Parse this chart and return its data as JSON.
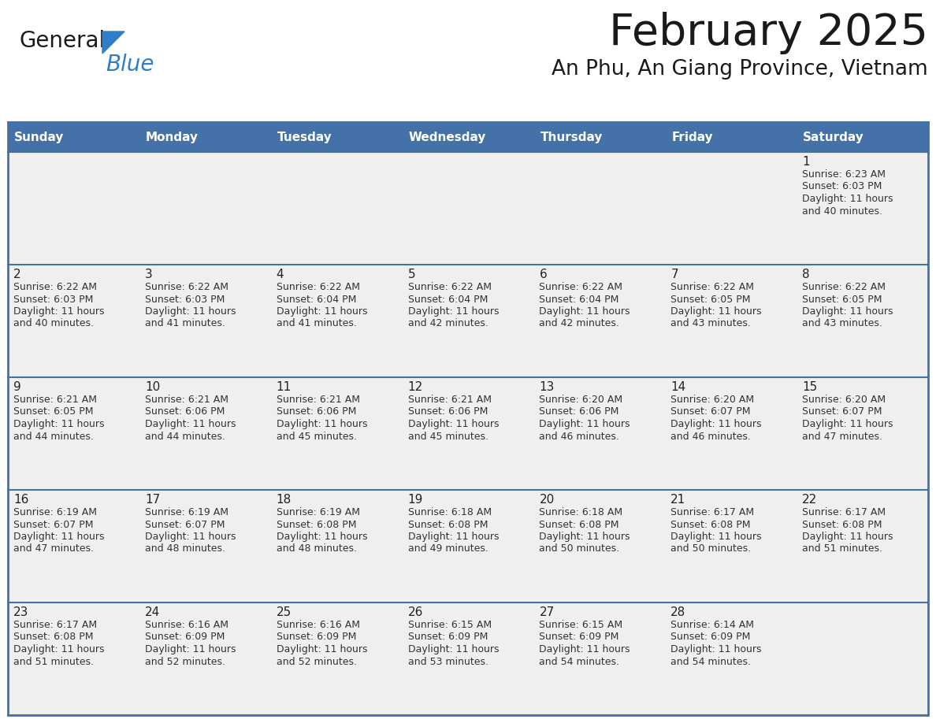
{
  "title": "February 2025",
  "subtitle": "An Phu, An Giang Province, Vietnam",
  "days_of_week": [
    "Sunday",
    "Monday",
    "Tuesday",
    "Wednesday",
    "Thursday",
    "Friday",
    "Saturday"
  ],
  "header_bg": "#4472A8",
  "header_text_color": "#FFFFFF",
  "cell_bg": "#EFEFEF",
  "border_color": "#4472A8",
  "day_num_color": "#222222",
  "info_text_color": "#333333",
  "title_color": "#1a1a1a",
  "subtitle_color": "#1a1a1a",
  "logo_general_color": "#1a1a1a",
  "logo_blue_color": "#2F7EC7",
  "calendar_data": [
    [
      {
        "day": null,
        "sunrise": null,
        "sunset": null,
        "daylight": null
      },
      {
        "day": null,
        "sunrise": null,
        "sunset": null,
        "daylight": null
      },
      {
        "day": null,
        "sunrise": null,
        "sunset": null,
        "daylight": null
      },
      {
        "day": null,
        "sunrise": null,
        "sunset": null,
        "daylight": null
      },
      {
        "day": null,
        "sunrise": null,
        "sunset": null,
        "daylight": null
      },
      {
        "day": null,
        "sunrise": null,
        "sunset": null,
        "daylight": null
      },
      {
        "day": 1,
        "sunrise": "6:23 AM",
        "sunset": "6:03 PM",
        "daylight": "11 hours\nand 40 minutes."
      }
    ],
    [
      {
        "day": 2,
        "sunrise": "6:22 AM",
        "sunset": "6:03 PM",
        "daylight": "11 hours\nand 40 minutes."
      },
      {
        "day": 3,
        "sunrise": "6:22 AM",
        "sunset": "6:03 PM",
        "daylight": "11 hours\nand 41 minutes."
      },
      {
        "day": 4,
        "sunrise": "6:22 AM",
        "sunset": "6:04 PM",
        "daylight": "11 hours\nand 41 minutes."
      },
      {
        "day": 5,
        "sunrise": "6:22 AM",
        "sunset": "6:04 PM",
        "daylight": "11 hours\nand 42 minutes."
      },
      {
        "day": 6,
        "sunrise": "6:22 AM",
        "sunset": "6:04 PM",
        "daylight": "11 hours\nand 42 minutes."
      },
      {
        "day": 7,
        "sunrise": "6:22 AM",
        "sunset": "6:05 PM",
        "daylight": "11 hours\nand 43 minutes."
      },
      {
        "day": 8,
        "sunrise": "6:22 AM",
        "sunset": "6:05 PM",
        "daylight": "11 hours\nand 43 minutes."
      }
    ],
    [
      {
        "day": 9,
        "sunrise": "6:21 AM",
        "sunset": "6:05 PM",
        "daylight": "11 hours\nand 44 minutes."
      },
      {
        "day": 10,
        "sunrise": "6:21 AM",
        "sunset": "6:06 PM",
        "daylight": "11 hours\nand 44 minutes."
      },
      {
        "day": 11,
        "sunrise": "6:21 AM",
        "sunset": "6:06 PM",
        "daylight": "11 hours\nand 45 minutes."
      },
      {
        "day": 12,
        "sunrise": "6:21 AM",
        "sunset": "6:06 PM",
        "daylight": "11 hours\nand 45 minutes."
      },
      {
        "day": 13,
        "sunrise": "6:20 AM",
        "sunset": "6:06 PM",
        "daylight": "11 hours\nand 46 minutes."
      },
      {
        "day": 14,
        "sunrise": "6:20 AM",
        "sunset": "6:07 PM",
        "daylight": "11 hours\nand 46 minutes."
      },
      {
        "day": 15,
        "sunrise": "6:20 AM",
        "sunset": "6:07 PM",
        "daylight": "11 hours\nand 47 minutes."
      }
    ],
    [
      {
        "day": 16,
        "sunrise": "6:19 AM",
        "sunset": "6:07 PM",
        "daylight": "11 hours\nand 47 minutes."
      },
      {
        "day": 17,
        "sunrise": "6:19 AM",
        "sunset": "6:07 PM",
        "daylight": "11 hours\nand 48 minutes."
      },
      {
        "day": 18,
        "sunrise": "6:19 AM",
        "sunset": "6:08 PM",
        "daylight": "11 hours\nand 48 minutes."
      },
      {
        "day": 19,
        "sunrise": "6:18 AM",
        "sunset": "6:08 PM",
        "daylight": "11 hours\nand 49 minutes."
      },
      {
        "day": 20,
        "sunrise": "6:18 AM",
        "sunset": "6:08 PM",
        "daylight": "11 hours\nand 50 minutes."
      },
      {
        "day": 21,
        "sunrise": "6:17 AM",
        "sunset": "6:08 PM",
        "daylight": "11 hours\nand 50 minutes."
      },
      {
        "day": 22,
        "sunrise": "6:17 AM",
        "sunset": "6:08 PM",
        "daylight": "11 hours\nand 51 minutes."
      }
    ],
    [
      {
        "day": 23,
        "sunrise": "6:17 AM",
        "sunset": "6:08 PM",
        "daylight": "11 hours\nand 51 minutes."
      },
      {
        "day": 24,
        "sunrise": "6:16 AM",
        "sunset": "6:09 PM",
        "daylight": "11 hours\nand 52 minutes."
      },
      {
        "day": 25,
        "sunrise": "6:16 AM",
        "sunset": "6:09 PM",
        "daylight": "11 hours\nand 52 minutes."
      },
      {
        "day": 26,
        "sunrise": "6:15 AM",
        "sunset": "6:09 PM",
        "daylight": "11 hours\nand 53 minutes."
      },
      {
        "day": 27,
        "sunrise": "6:15 AM",
        "sunset": "6:09 PM",
        "daylight": "11 hours\nand 54 minutes."
      },
      {
        "day": 28,
        "sunrise": "6:14 AM",
        "sunset": "6:09 PM",
        "daylight": "11 hours\nand 54 minutes."
      },
      {
        "day": null,
        "sunrise": null,
        "sunset": null,
        "daylight": null
      }
    ]
  ]
}
